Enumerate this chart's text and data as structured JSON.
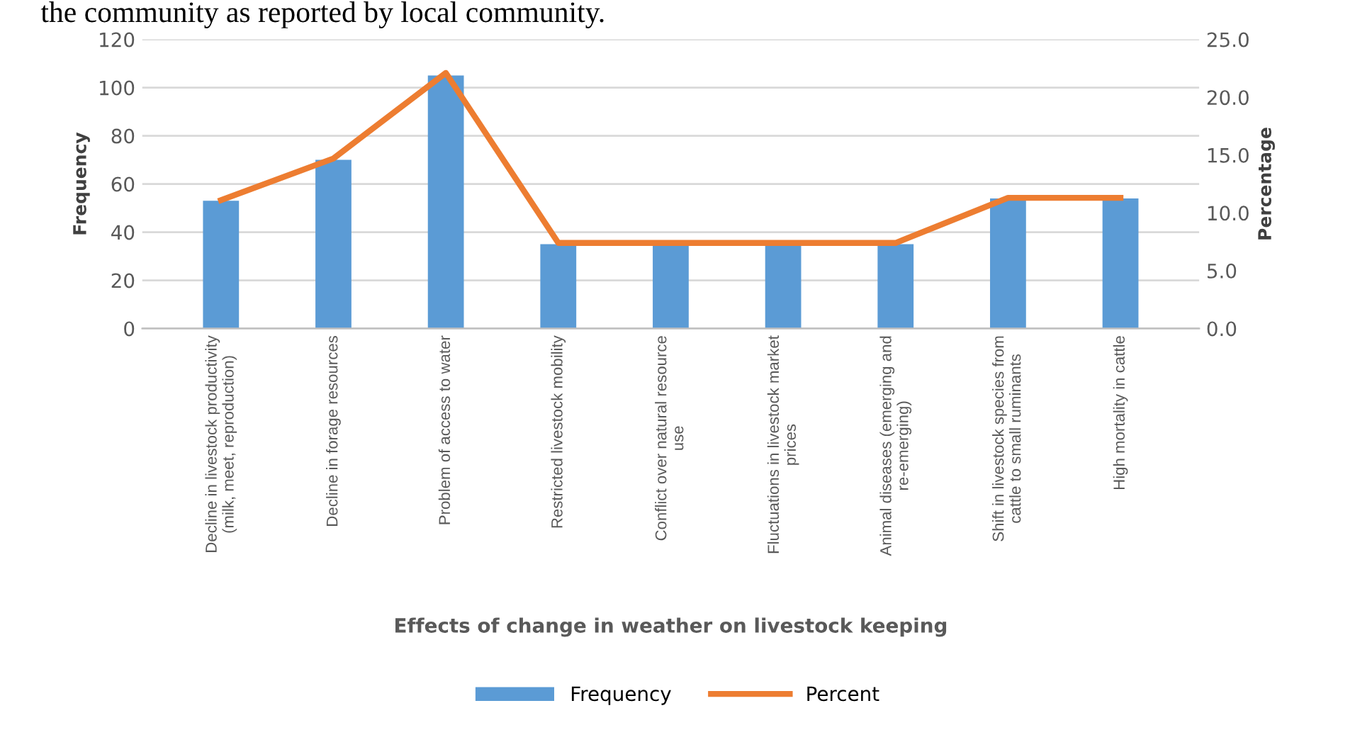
{
  "chart_data": {
    "type": "bar",
    "annotations": [
      "the community as reported by local community."
    ],
    "xlabel": "Effects of change in weather on livestock keeping",
    "ylabel": "Frequency",
    "y2label": "Percentage",
    "categories": [
      "Decline in livestock productivity\n(milk, meet, reproduction)",
      "Decline in forage resources",
      "Problem of access to water",
      "Restricted livestock mobility",
      "Conflict over natural resource\nuse",
      "Fluctuations in livestock market\nprices",
      "Animal diseases (emerging and\nre-emerging)",
      "Shift in livestock species from\ncattle to small ruminants",
      "High mortality in cattle"
    ],
    "series": [
      {
        "name": "Frequency",
        "color": "#5b9bd5",
        "values": [
          53,
          70,
          105,
          35,
          35,
          35,
          35,
          54,
          54
        ]
      },
      {
        "name": "Percent",
        "type": "line",
        "axis": "y2",
        "color": "#ed7d31",
        "values": [
          11.1,
          14.7,
          22.1,
          7.4,
          7.4,
          7.4,
          7.4,
          11.3,
          11.3
        ]
      }
    ],
    "ylim": [
      0,
      120
    ],
    "yticks": [
      0,
      20,
      40,
      60,
      80,
      100,
      120
    ],
    "y2lim": [
      0,
      25
    ],
    "y2ticks": [
      {
        "value": 0,
        "label": "0.0"
      },
      {
        "value": 5,
        "label": "5.0"
      },
      {
        "value": 10,
        "label": "10.0"
      },
      {
        "value": 15,
        "label": "15.0"
      },
      {
        "value": 20,
        "label": "20.0"
      },
      {
        "value": 25,
        "label": "25.0"
      }
    ],
    "grid": "y",
    "legend": "bottom",
    "marker": "none",
    "line_style": "solid"
  }
}
